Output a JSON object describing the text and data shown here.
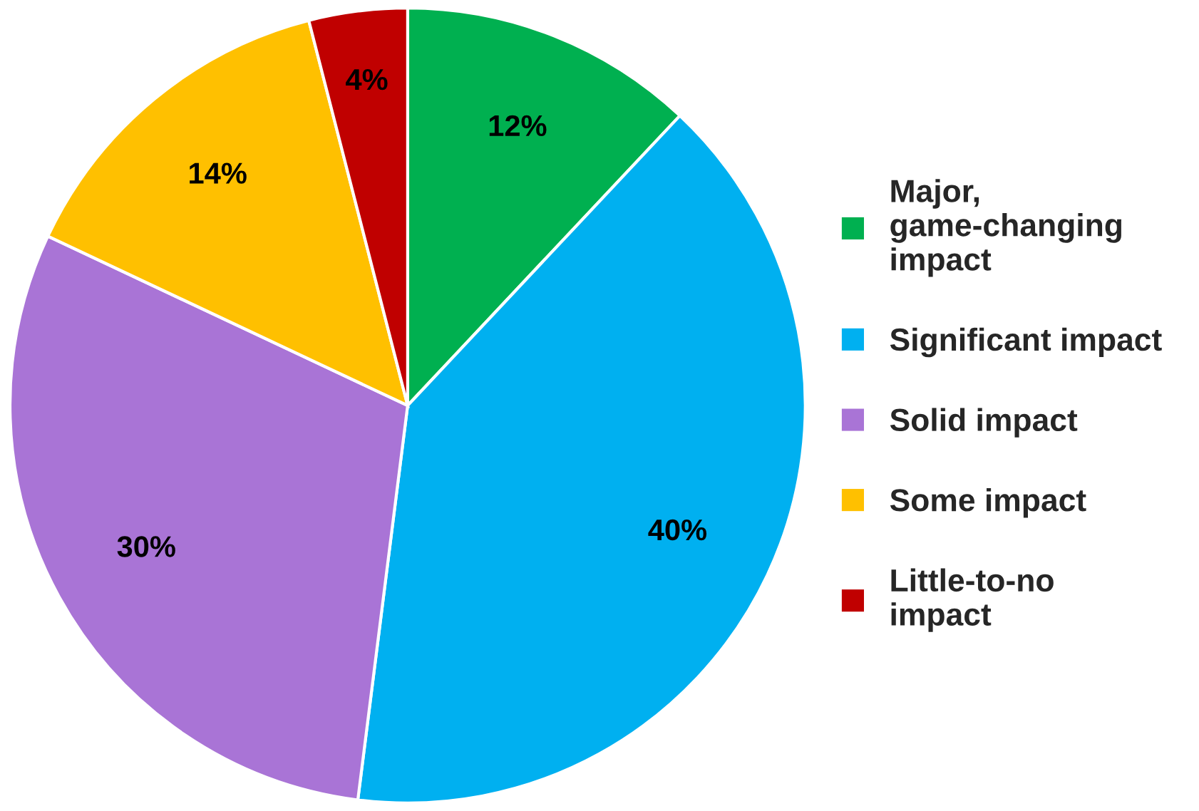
{
  "chart_data": {
    "type": "pie",
    "categories": [
      "Major, game-changing impact",
      "Significant impact",
      "Solid impact",
      "Some impact",
      "Little-to-no impact"
    ],
    "values": [
      12,
      40,
      30,
      14,
      4
    ],
    "colors": [
      "#00b050",
      "#00b0f0",
      "#a974d6",
      "#ffc000",
      "#c00000"
    ],
    "value_labels": [
      "12%",
      "40%",
      "30%",
      "14%",
      "4%"
    ],
    "legend": "right"
  }
}
